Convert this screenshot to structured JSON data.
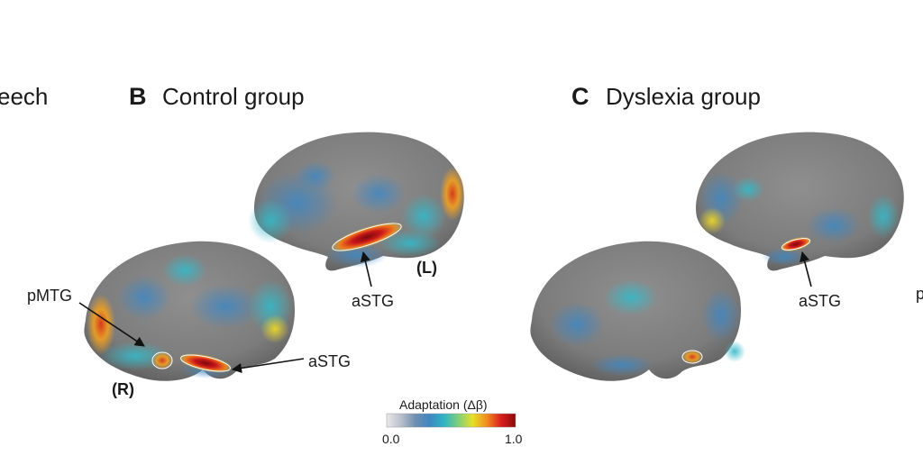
{
  "partial_heading": "eech",
  "panel_b": {
    "letter": "B",
    "title": "Control group",
    "labels": {
      "pmtg": "pMTG",
      "astg_right": "aSTG",
      "astg_left": "aSTG",
      "right": "(R)",
      "left": "(L)"
    }
  },
  "panel_c": {
    "letter": "C",
    "title": "Dyslexia group",
    "labels": {
      "astg_left": "aSTG",
      "cut_label": "p"
    }
  },
  "colorbar": {
    "title": "Adaptation (Δβ)",
    "min_label": "0.0",
    "max_label": "1.0",
    "colors": [
      "#e8e8e8",
      "#b9c0cc",
      "#6f8fb0",
      "#3f87c2",
      "#2fb3c4",
      "#7fcf7a",
      "#e6e02a",
      "#f28a1e",
      "#d81e1e",
      "#8b0a0a"
    ]
  }
}
